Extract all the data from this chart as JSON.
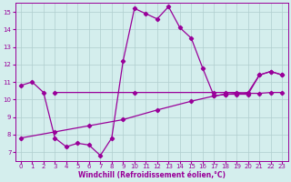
{
  "line1_x": [
    0,
    1,
    2,
    3,
    4,
    5,
    6,
    7,
    8,
    9,
    10,
    11,
    12,
    13,
    14,
    15,
    16,
    17,
    18,
    19,
    20,
    21,
    22,
    23
  ],
  "line1_y": [
    10.8,
    11.0,
    10.4,
    7.8,
    7.3,
    7.5,
    7.4,
    6.8,
    7.8,
    12.2,
    15.2,
    14.9,
    14.6,
    15.3,
    14.1,
    13.5,
    11.8,
    10.2,
    10.3,
    10.3,
    10.3,
    11.4,
    11.6,
    11.4
  ],
  "line2_x": [
    3,
    10,
    17,
    18,
    19,
    20,
    21,
    22,
    23
  ],
  "line2_y": [
    10.4,
    10.4,
    10.4,
    10.4,
    10.4,
    10.35,
    10.35,
    10.4,
    10.4
  ],
  "line3_x": [
    0,
    3,
    6,
    9,
    12,
    15,
    17,
    18,
    19,
    20,
    21,
    22,
    23
  ],
  "line3_y": [
    7.8,
    8.15,
    8.5,
    8.85,
    9.4,
    9.9,
    10.2,
    10.3,
    10.35,
    10.4,
    11.4,
    11.6,
    11.4
  ],
  "line_color": "#990099",
  "bg_color": "#d4eeed",
  "grid_color": "#b0cece",
  "xlabel": "Windchill (Refroidissement éolien,°C)",
  "xlim_min": -0.5,
  "xlim_max": 23.5,
  "ylim_min": 6.5,
  "ylim_max": 15.5,
  "yticks": [
    7,
    8,
    9,
    10,
    11,
    12,
    13,
    14,
    15
  ],
  "xtick_labels": [
    "0",
    "1",
    "2",
    "3",
    "4",
    "5",
    "6",
    "7",
    "8",
    "9",
    "10",
    "11",
    "12",
    "13",
    "14",
    "15",
    "16",
    "17",
    "18",
    "19",
    "20",
    "21",
    "22",
    "23"
  ],
  "tick_fontsize": 5.0,
  "xlabel_fontsize": 5.5
}
